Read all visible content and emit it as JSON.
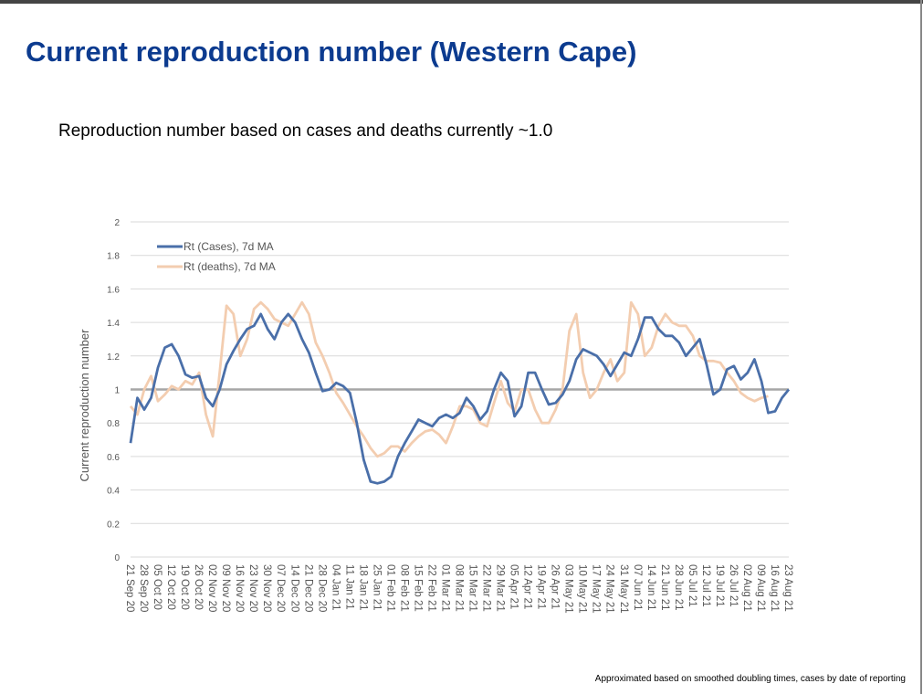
{
  "title": "Current reproduction number (Western Cape)",
  "subtitle": "Reproduction number based on cases and deaths currently ~1.0",
  "footnote": "Approximated based on smoothed doubling times, cases by date of reporting",
  "chart_data": {
    "type": "line",
    "ylabel": "Current reproduction number",
    "ylim": [
      0,
      2
    ],
    "yticks": [
      0,
      0.2,
      0.4,
      0.6,
      0.8,
      1,
      1.2,
      1.4,
      1.6,
      1.8,
      2
    ],
    "grid": true,
    "reference_line": 1,
    "legend": "upper left",
    "categories": [
      "21 Sep 20",
      null,
      "28 Sep 20",
      null,
      "05 Oct 20",
      null,
      "12 Oct 20",
      null,
      "19 Oct 20",
      null,
      "26 Oct 20",
      null,
      "02 Nov 20",
      null,
      "09 Nov 20",
      null,
      "16 Nov 20",
      null,
      "23 Nov 20",
      null,
      "30 Nov 20",
      null,
      "07 Dec 20",
      null,
      "14 Dec 20",
      null,
      "21 Dec 20",
      null,
      "28 Dec 20",
      null,
      "04 Jan 21",
      null,
      "11 Jan 21",
      null,
      "18 Jan 21",
      null,
      "25 Jan 21",
      null,
      "01 Feb 21",
      null,
      "08 Feb 21",
      null,
      "15 Feb 21",
      null,
      "22 Feb 21",
      null,
      "01 Mar 21",
      null,
      "08 Mar 21",
      null,
      "15 Mar 21",
      null,
      "22 Mar 21",
      null,
      "29 Mar 21",
      null,
      "05 Apr 21",
      null,
      "12 Apr 21",
      null,
      "19 Apr 21",
      null,
      "26 Apr 21",
      null,
      "03 May 21",
      null,
      "10 May 21",
      null,
      "17 May 21",
      null,
      "24 May 21",
      null,
      "31 May 21",
      null,
      "07 Jun 21",
      null,
      "14 Jun 21",
      null,
      "21 Jun 21",
      null,
      "28 Jun 21",
      null,
      "05 Jul 21",
      null,
      "12 Jul 21",
      null,
      "19 Jul 21",
      null,
      "26 Jul 21",
      null,
      "02 Aug 21",
      null,
      "09 Aug 21",
      null,
      "16 Aug 21",
      null,
      "23 Aug 21"
    ],
    "series": [
      {
        "name": "Rt (Cases), 7d MA",
        "color": "#4a6fa9",
        "values": [
          0.68,
          0.95,
          0.88,
          0.95,
          1.13,
          1.25,
          1.27,
          1.2,
          1.09,
          1.07,
          1.08,
          0.95,
          0.9,
          1.0,
          1.15,
          1.23,
          1.3,
          1.36,
          1.38,
          1.45,
          1.36,
          1.3,
          1.4,
          1.45,
          1.4,
          1.3,
          1.22,
          1.1,
          0.99,
          1.0,
          1.04,
          1.02,
          0.98,
          0.8,
          0.58,
          0.45,
          0.44,
          0.45,
          0.48,
          0.6,
          0.68,
          0.75,
          0.82,
          0.8,
          0.78,
          0.83,
          0.85,
          0.83,
          0.86,
          0.95,
          0.9,
          0.82,
          0.87,
          1.0,
          1.1,
          1.05,
          0.84,
          0.9,
          1.1,
          1.1,
          1.0,
          0.91,
          0.92,
          0.97,
          1.05,
          1.18,
          1.24,
          1.22,
          1.2,
          1.15,
          1.08,
          1.15,
          1.22,
          1.2,
          1.3,
          1.43,
          1.43,
          1.36,
          1.32,
          1.32,
          1.28,
          1.2,
          1.25,
          1.3,
          1.15,
          0.97,
          1.0,
          1.12,
          1.14,
          1.06,
          1.1,
          1.18,
          1.05,
          0.86,
          0.87,
          0.95,
          1.0
        ]
      },
      {
        "name": "Rt (deaths), 7d MA",
        "color": "#f3cdb0",
        "values": [
          0.9,
          0.85,
          1.0,
          1.08,
          0.93,
          0.97,
          1.02,
          1.0,
          1.05,
          1.03,
          1.1,
          0.85,
          0.72,
          1.1,
          1.5,
          1.45,
          1.2,
          1.3,
          1.48,
          1.52,
          1.48,
          1.42,
          1.4,
          1.38,
          1.45,
          1.52,
          1.45,
          1.28,
          1.2,
          1.1,
          0.98,
          0.92,
          0.85,
          0.78,
          0.72,
          0.65,
          0.6,
          0.62,
          0.66,
          0.66,
          0.63,
          0.68,
          0.72,
          0.75,
          0.76,
          0.73,
          0.68,
          0.78,
          0.9,
          0.9,
          0.88,
          0.8,
          0.78,
          0.92,
          1.05,
          0.92,
          0.87,
          1.0,
          1.0,
          0.88,
          0.8,
          0.8,
          0.88,
          1.0,
          1.35,
          1.45,
          1.1,
          0.95,
          1.0,
          1.1,
          1.18,
          1.05,
          1.1,
          1.52,
          1.45,
          1.2,
          1.25,
          1.38,
          1.45,
          1.4,
          1.38,
          1.38,
          1.32,
          1.2,
          1.17,
          1.17,
          1.16,
          1.1,
          1.05,
          0.98,
          0.95,
          0.93,
          0.95,
          0.96,
          null,
          null,
          null
        ]
      }
    ]
  }
}
